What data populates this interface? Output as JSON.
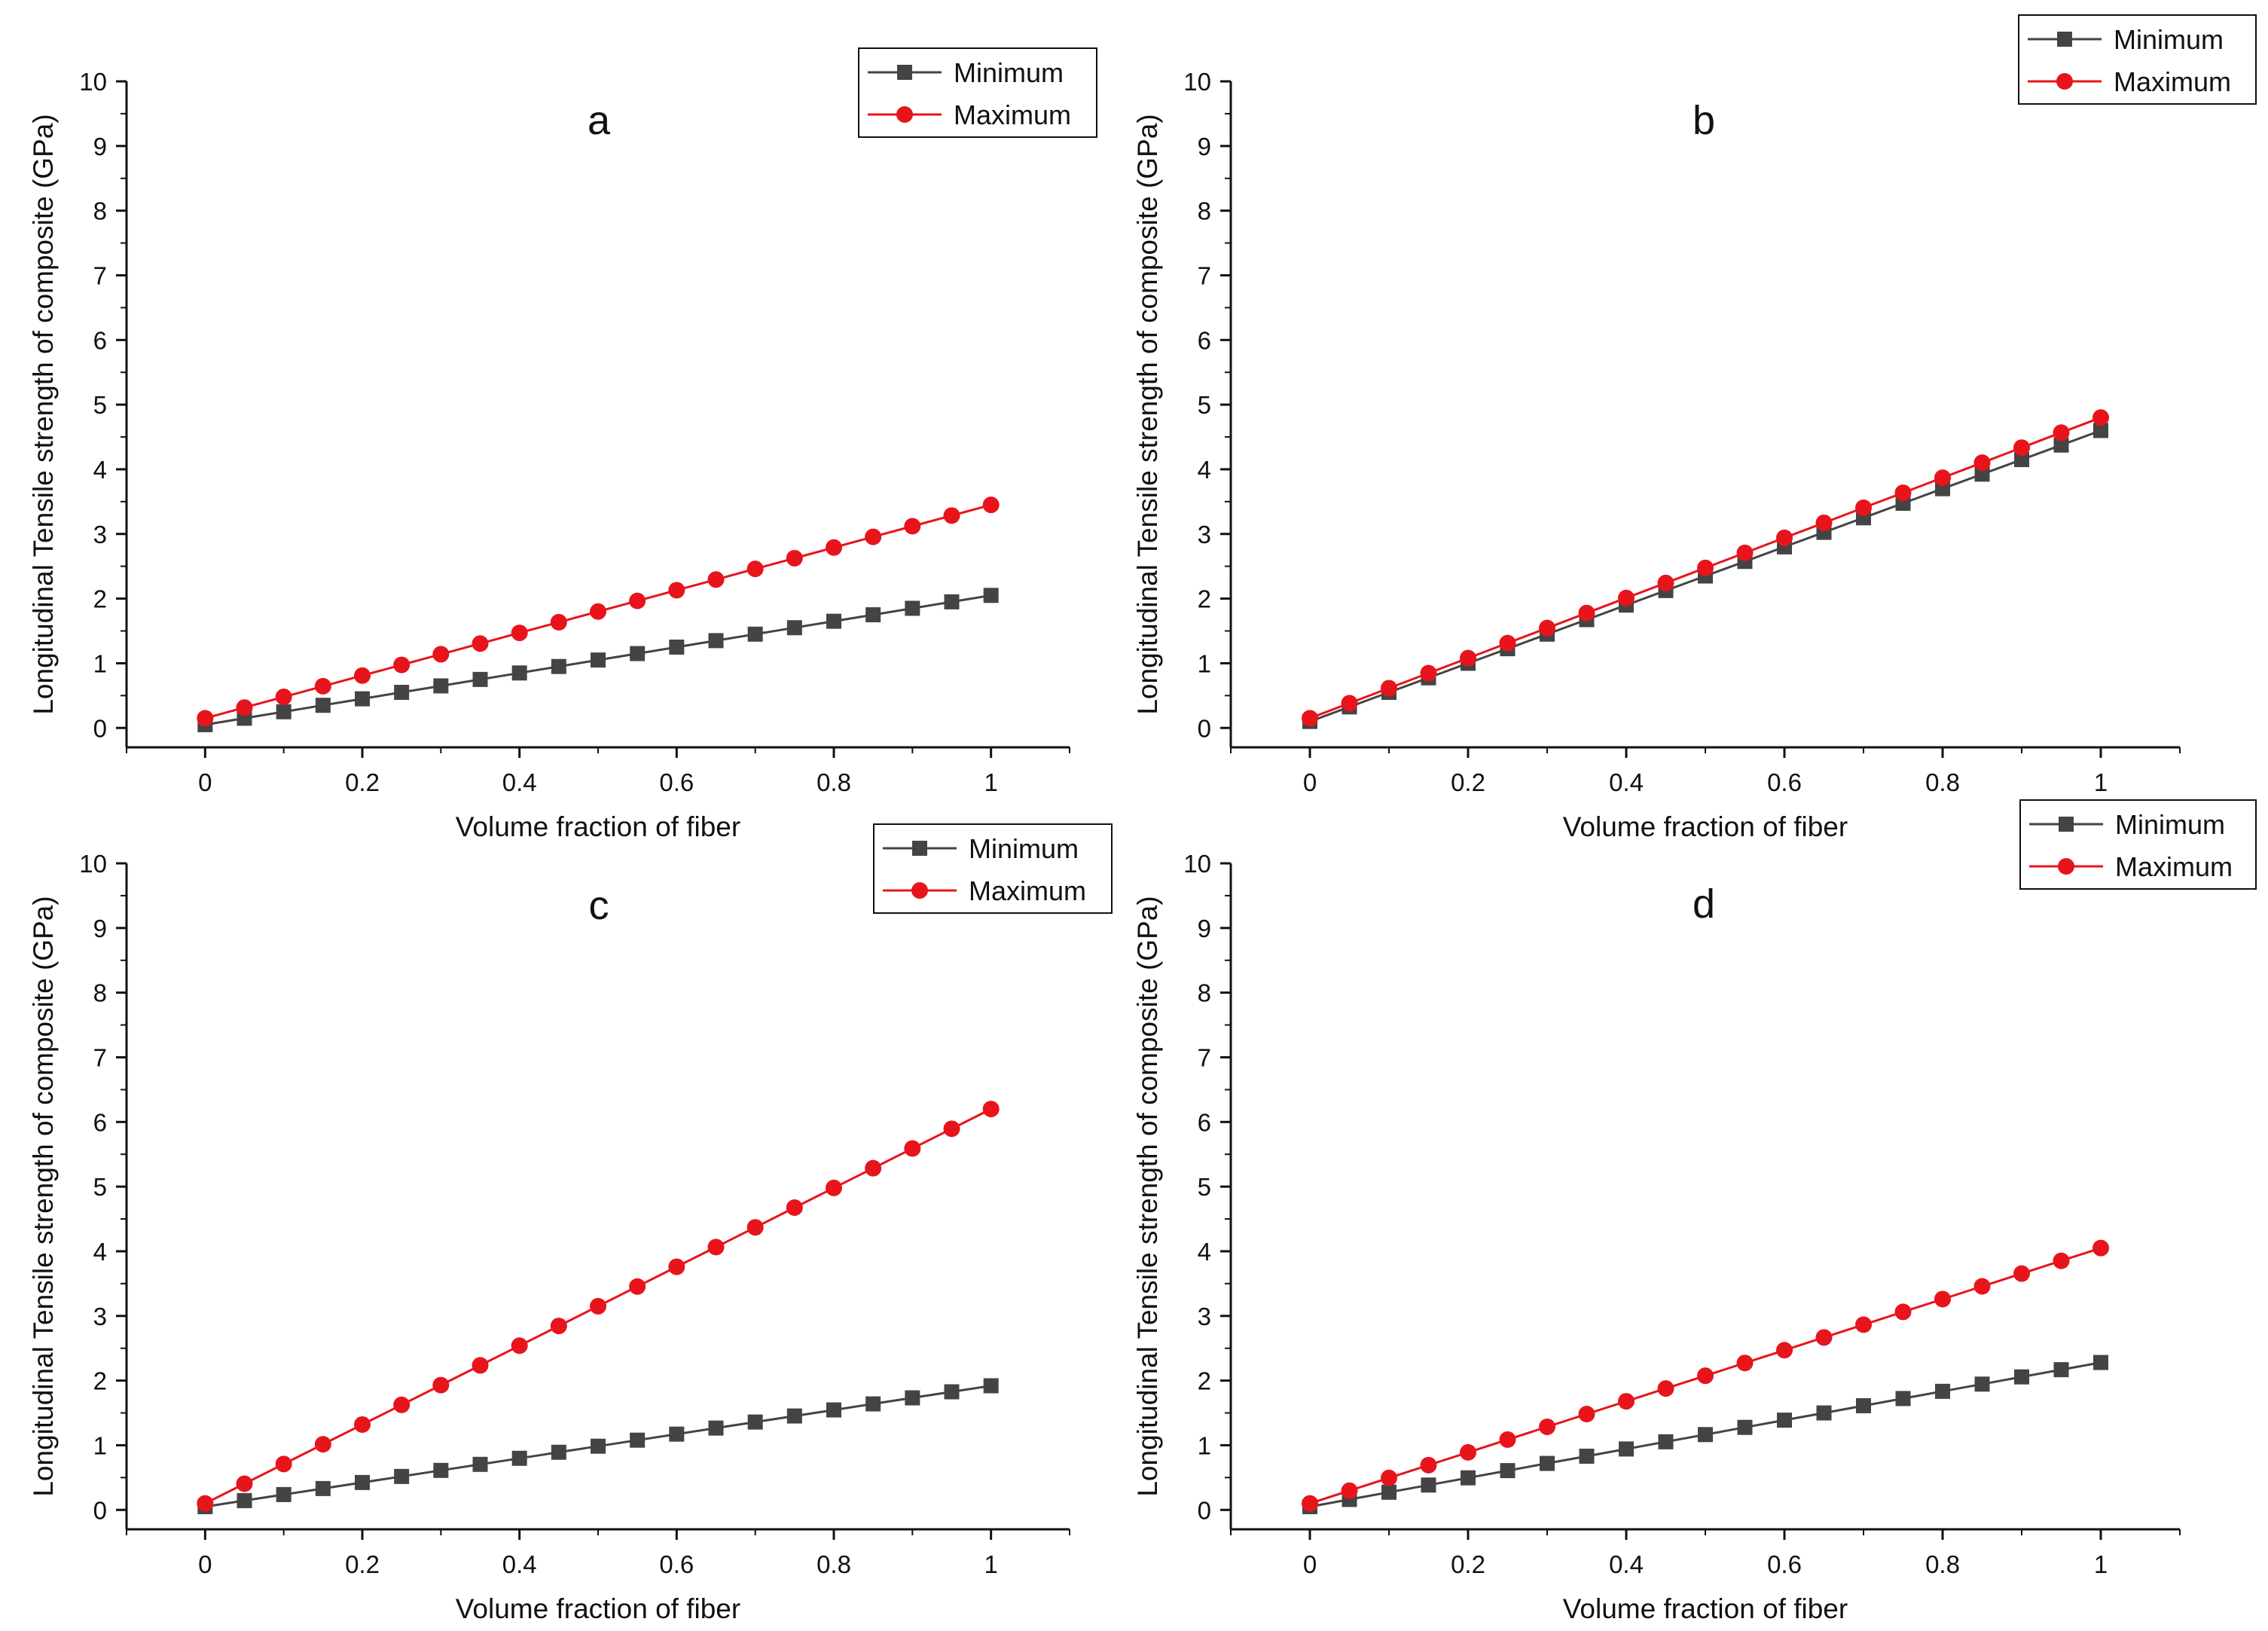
{
  "chart_data": [
    {
      "type": "line",
      "title": "a",
      "xlabel": "Volume fraction of fiber",
      "ylabel": "Longitudinal Tensile strength of composite (GPa)",
      "xlim": [
        -0.1,
        1.1
      ],
      "ylim": [
        -0.3,
        10
      ],
      "xticks": [
        0,
        0.2,
        0.4,
        0.6,
        0.8,
        1
      ],
      "xtick_labels": [
        "0",
        "0.2",
        "0.4",
        "0.6",
        "0.8",
        "1"
      ],
      "yticks": [
        0,
        1,
        2,
        3,
        4,
        5,
        6,
        7,
        8,
        9,
        10
      ],
      "ytick_labels": [
        "0",
        "1",
        "2",
        "3",
        "4",
        "5",
        "6",
        "7",
        "8",
        "9",
        "10"
      ],
      "legend_position": "top-right",
      "x": [
        0,
        0.05,
        0.1,
        0.15,
        0.2,
        0.25,
        0.3,
        0.35,
        0.4,
        0.45,
        0.5,
        0.55,
        0.6,
        0.65,
        0.7,
        0.75,
        0.8,
        0.85,
        0.9,
        0.95,
        1
      ],
      "series": [
        {
          "name": "Minimum",
          "color": "#444444",
          "marker": "square",
          "start": 0.05,
          "end": 2.05
        },
        {
          "name": "Maximum",
          "color": "#e8141b",
          "marker": "circle",
          "start": 0.15,
          "end": 3.45
        }
      ]
    },
    {
      "type": "line",
      "title": "b",
      "xlabel": "Volume fraction of fiber",
      "ylabel": "Longitudinal Tensile strength of composite (GPa)",
      "xlim": [
        -0.1,
        1.1
      ],
      "ylim": [
        -0.3,
        10
      ],
      "xticks": [
        0,
        0.2,
        0.4,
        0.6,
        0.8,
        1
      ],
      "xtick_labels": [
        "0",
        "0.2",
        "0.4",
        "0.6",
        "0.8",
        "1"
      ],
      "yticks": [
        0,
        1,
        2,
        3,
        4,
        5,
        6,
        7,
        8,
        9,
        10
      ],
      "ytick_labels": [
        "0",
        "1",
        "2",
        "3",
        "4",
        "5",
        "6",
        "7",
        "8",
        "9",
        "10"
      ],
      "legend_position": "top-right",
      "x": [
        0,
        0.05,
        0.1,
        0.15,
        0.2,
        0.25,
        0.3,
        0.35,
        0.4,
        0.45,
        0.5,
        0.55,
        0.6,
        0.65,
        0.7,
        0.75,
        0.8,
        0.85,
        0.9,
        0.95,
        1
      ],
      "series": [
        {
          "name": "Minimum",
          "color": "#444444",
          "marker": "square",
          "start": 0.1,
          "end": 4.6
        },
        {
          "name": "Maximum",
          "color": "#e8141b",
          "marker": "circle",
          "start": 0.15,
          "end": 4.8
        }
      ]
    },
    {
      "type": "line",
      "title": "c",
      "xlabel": "Volume fraction of fiber",
      "ylabel": "Longitudinal Tensile strength of composite (GPa)",
      "xlim": [
        -0.1,
        1.1
      ],
      "ylim": [
        -0.3,
        10
      ],
      "xticks": [
        0,
        0.2,
        0.4,
        0.6,
        0.8,
        1
      ],
      "xtick_labels": [
        "0",
        "0.2",
        "0.4",
        "0.6",
        "0.8",
        "1"
      ],
      "yticks": [
        0,
        1,
        2,
        3,
        4,
        5,
        6,
        7,
        8,
        9,
        10
      ],
      "ytick_labels": [
        "0",
        "1",
        "2",
        "3",
        "4",
        "5",
        "6",
        "7",
        "8",
        "9",
        "10"
      ],
      "legend_position": "top-right",
      "x": [
        0,
        0.05,
        0.1,
        0.15,
        0.2,
        0.25,
        0.3,
        0.35,
        0.4,
        0.45,
        0.5,
        0.55,
        0.6,
        0.65,
        0.7,
        0.75,
        0.8,
        0.85,
        0.9,
        0.95,
        1
      ],
      "series": [
        {
          "name": "Minimum",
          "color": "#444444",
          "marker": "square",
          "start": 0.05,
          "end": 1.92
        },
        {
          "name": "Maximum",
          "color": "#e8141b",
          "marker": "circle",
          "start": 0.1,
          "end": 6.2
        }
      ]
    },
    {
      "type": "line",
      "title": "d",
      "xlabel": "Volume fraction of fiber",
      "ylabel": "Longitudinal Tensile strength of composite (GPa)",
      "xlim": [
        -0.1,
        1.1
      ],
      "ylim": [
        -0.3,
        10
      ],
      "xticks": [
        0,
        0.2,
        0.4,
        0.6,
        0.8,
        1
      ],
      "xtick_labels": [
        "0",
        "0.2",
        "0.4",
        "0.6",
        "0.8",
        "1"
      ],
      "yticks": [
        0,
        1,
        2,
        3,
        4,
        5,
        6,
        7,
        8,
        9,
        10
      ],
      "ytick_labels": [
        "0",
        "1",
        "2",
        "3",
        "4",
        "5",
        "6",
        "7",
        "8",
        "9",
        "10"
      ],
      "legend_position": "top-right",
      "x": [
        0,
        0.05,
        0.1,
        0.15,
        0.2,
        0.25,
        0.3,
        0.35,
        0.4,
        0.45,
        0.5,
        0.55,
        0.6,
        0.65,
        0.7,
        0.75,
        0.8,
        0.85,
        0.9,
        0.95,
        1
      ],
      "series": [
        {
          "name": "Minimum",
          "color": "#444444",
          "marker": "square",
          "start": 0.05,
          "end": 2.28
        },
        {
          "name": "Maximum",
          "color": "#e8141b",
          "marker": "circle",
          "start": 0.1,
          "end": 4.05
        }
      ]
    }
  ]
}
